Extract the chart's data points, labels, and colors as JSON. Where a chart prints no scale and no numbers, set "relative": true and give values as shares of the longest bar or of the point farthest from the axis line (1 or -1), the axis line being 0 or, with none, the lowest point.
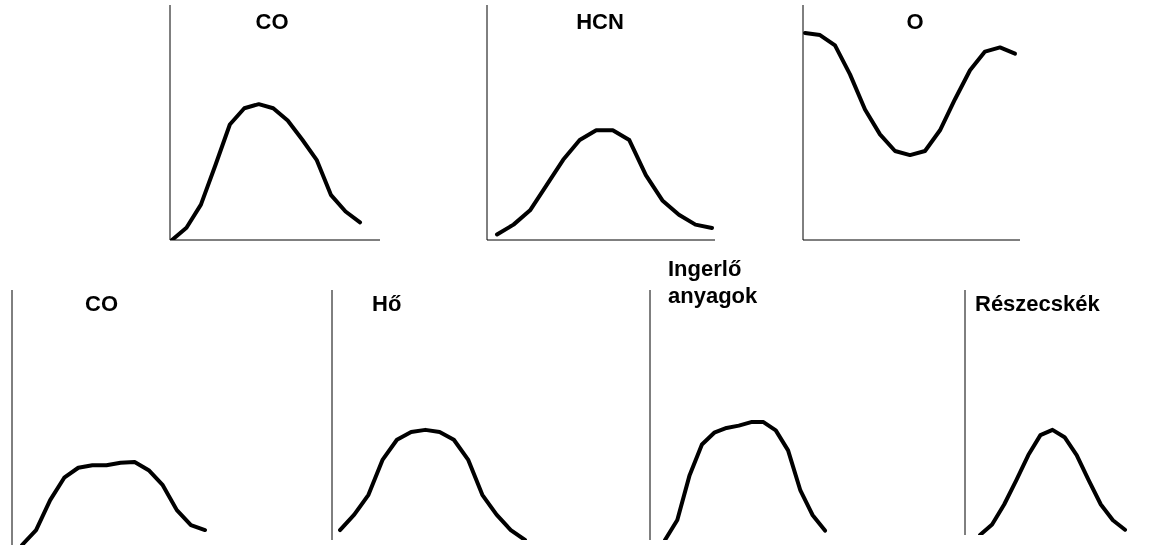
{
  "chart_data": [
    {
      "type": "line",
      "title": "CO",
      "categories": [
        null,
        null,
        null,
        null,
        null,
        null,
        null,
        null,
        null,
        null,
        null,
        null,
        null,
        null
      ],
      "values": [
        0,
        0.09,
        0.26,
        0.55,
        0.85,
        0.97,
        1,
        0.97,
        0.88,
        0.74,
        0.59,
        0.33,
        0.21,
        0.13
      ],
      "color": "#000000",
      "relative": true,
      "tick_labels": false,
      "marker": "none"
    },
    {
      "type": "line",
      "title": "HCN",
      "categories": [
        null,
        null,
        null,
        null,
        null,
        null,
        null,
        null,
        null,
        null,
        null,
        null,
        null,
        null
      ],
      "values": [
        0.05,
        0.14,
        0.27,
        0.5,
        0.73,
        0.91,
        1,
        1,
        0.91,
        0.59,
        0.36,
        0.23,
        0.14,
        0.11
      ],
      "color": "#000000",
      "relative": true,
      "tick_labels": false,
      "marker": "none"
    },
    {
      "type": "line",
      "title": "O",
      "categories": [
        null,
        null,
        null,
        null,
        null,
        null,
        null,
        null,
        null,
        null,
        null,
        null,
        null,
        null,
        null
      ],
      "values": [
        1,
        0.99,
        0.94,
        0.8,
        0.63,
        0.51,
        0.43,
        0.41,
        0.43,
        0.53,
        0.68,
        0.82,
        0.91,
        0.93,
        0.9
      ],
      "color": "#000000",
      "relative": true,
      "tick_labels": false,
      "marker": "none"
    },
    {
      "type": "line",
      "title": "CO",
      "categories": [
        null,
        null,
        null,
        null,
        null,
        null,
        null,
        null,
        null,
        null,
        null,
        null,
        null,
        null
      ],
      "values": [
        0,
        0.18,
        0.54,
        0.81,
        0.93,
        0.96,
        0.96,
        0.99,
        1,
        0.9,
        0.72,
        0.42,
        0.24,
        0.18
      ],
      "color": "#000000",
      "relative": true,
      "tick_labels": false,
      "marker": "none"
    },
    {
      "type": "line",
      "title": "Hő",
      "categories": [
        null,
        null,
        null,
        null,
        null,
        null,
        null,
        null,
        null,
        null,
        null,
        null,
        null,
        null
      ],
      "values": [
        0.09,
        0.23,
        0.41,
        0.73,
        0.91,
        0.98,
        1,
        0.98,
        0.91,
        0.73,
        0.41,
        0.23,
        0.09,
        0
      ],
      "color": "#000000",
      "relative": true,
      "tick_labels": false,
      "marker": "none"
    },
    {
      "type": "line",
      "title": "Ingerlő anyagok",
      "categories": [
        null,
        null,
        null,
        null,
        null,
        null,
        null,
        null,
        null,
        null,
        null,
        null,
        null,
        null
      ],
      "values": [
        0,
        0.17,
        0.55,
        0.81,
        0.91,
        0.95,
        0.97,
        1,
        1,
        0.93,
        0.76,
        0.42,
        0.21,
        0.08
      ],
      "color": "#000000",
      "relative": true,
      "tick_labels": false,
      "marker": "none"
    },
    {
      "type": "line",
      "title": "Részecskék",
      "categories": [
        null,
        null,
        null,
        null,
        null,
        null,
        null,
        null,
        null,
        null,
        null,
        null,
        null
      ],
      "values": [
        0,
        0.1,
        0.29,
        0.52,
        0.76,
        0.95,
        1,
        0.93,
        0.76,
        0.52,
        0.29,
        0.14,
        0.05
      ],
      "color": "#000000",
      "relative": true,
      "tick_labels": false,
      "marker": "none"
    }
  ]
}
